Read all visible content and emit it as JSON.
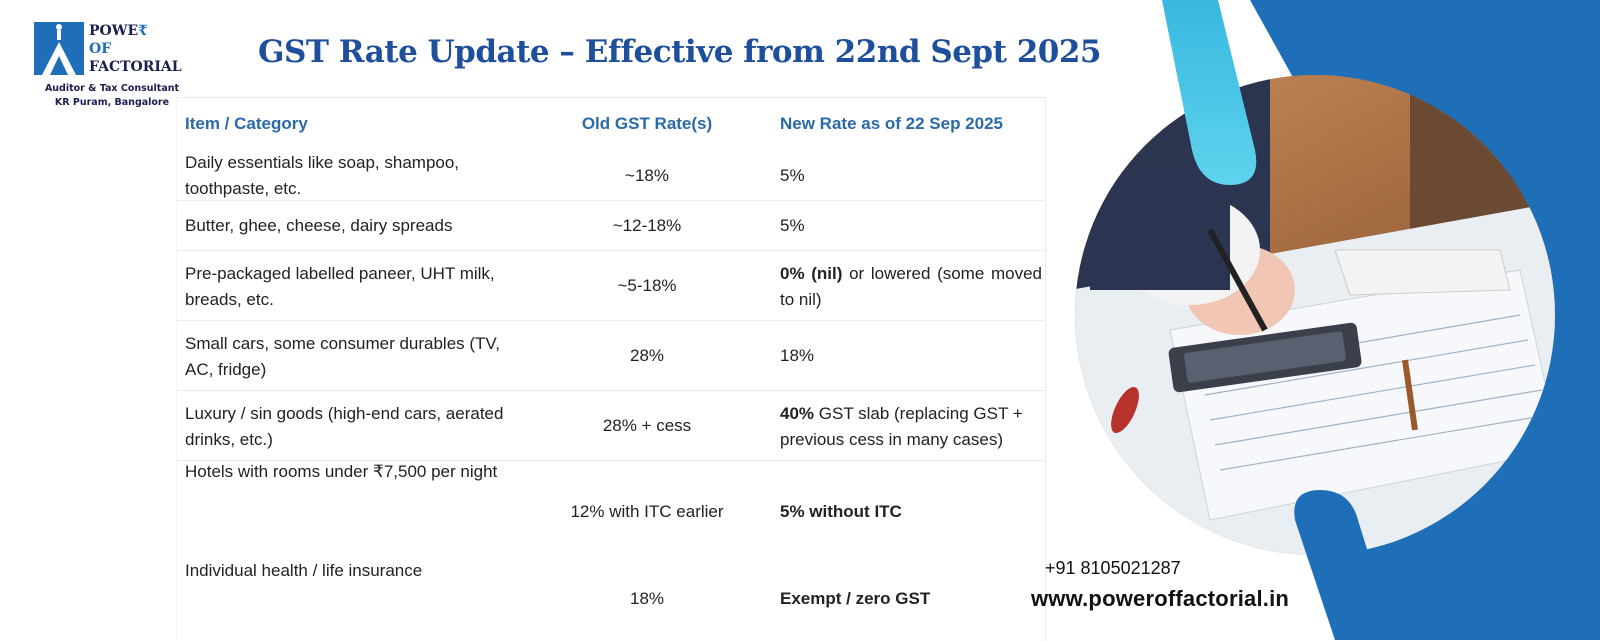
{
  "brand": {
    "line1": "POWE",
    "rupee": "₹",
    "line2": "OF",
    "line3": "FACTORIAL",
    "tagline": "Auditor & Tax Consultant",
    "location": "KR Puram, Bangalore"
  },
  "title": "GST Rate Update – Effective from 22nd Sept 2025",
  "table": {
    "headers": [
      "Item / Category",
      "Old GST Rate(s)",
      "New Rate as of 22 Sep 2025"
    ],
    "rows": [
      {
        "item": "Daily essentials like soap, shampoo, toothpaste, etc.",
        "old": "~18%",
        "new_bold": "",
        "new": "5%"
      },
      {
        "item": "Butter, ghee, cheese, dairy spreads",
        "old": "~12-18%",
        "new_bold": "",
        "new": "5%"
      },
      {
        "item": "Pre-packaged labelled paneer, UHT milk, breads, etc.",
        "old": "~5-18%",
        "new_bold": "0% (nil)",
        "new": " or lowered (some moved to nil)"
      },
      {
        "item": "Small cars, some consumer durables (TV, AC, fridge)",
        "old": "28%",
        "new_bold": "",
        "new": "18%"
      },
      {
        "item": "Luxury / sin goods (high-end cars, aerated drinks, etc.)",
        "old": "28% + cess",
        "new_bold": "40%",
        "new": " GST slab (replacing GST + previous cess in many cases)"
      },
      {
        "item": "Hotels with rooms under ₹7,500 per night",
        "old": "12% with ITC earlier",
        "new_bold": "5% without ITC",
        "new": ""
      },
      {
        "item": "Individual health / life insurance",
        "old": "18%",
        "new_bold": "Exempt / zero GST",
        "new": ""
      }
    ]
  },
  "contact": {
    "phone": "+91 8105021287",
    "website": "www.poweroffactorial.in"
  },
  "colors": {
    "title": "#1e4f9c",
    "header_text": "#2a6aa8",
    "brand_blue": "#1e6fb8",
    "stripe_dark": "#1e6fb8",
    "stripe_light": "#4fc8e6"
  },
  "icons": [
    "logo-mark-icon",
    "calculator-photo"
  ]
}
